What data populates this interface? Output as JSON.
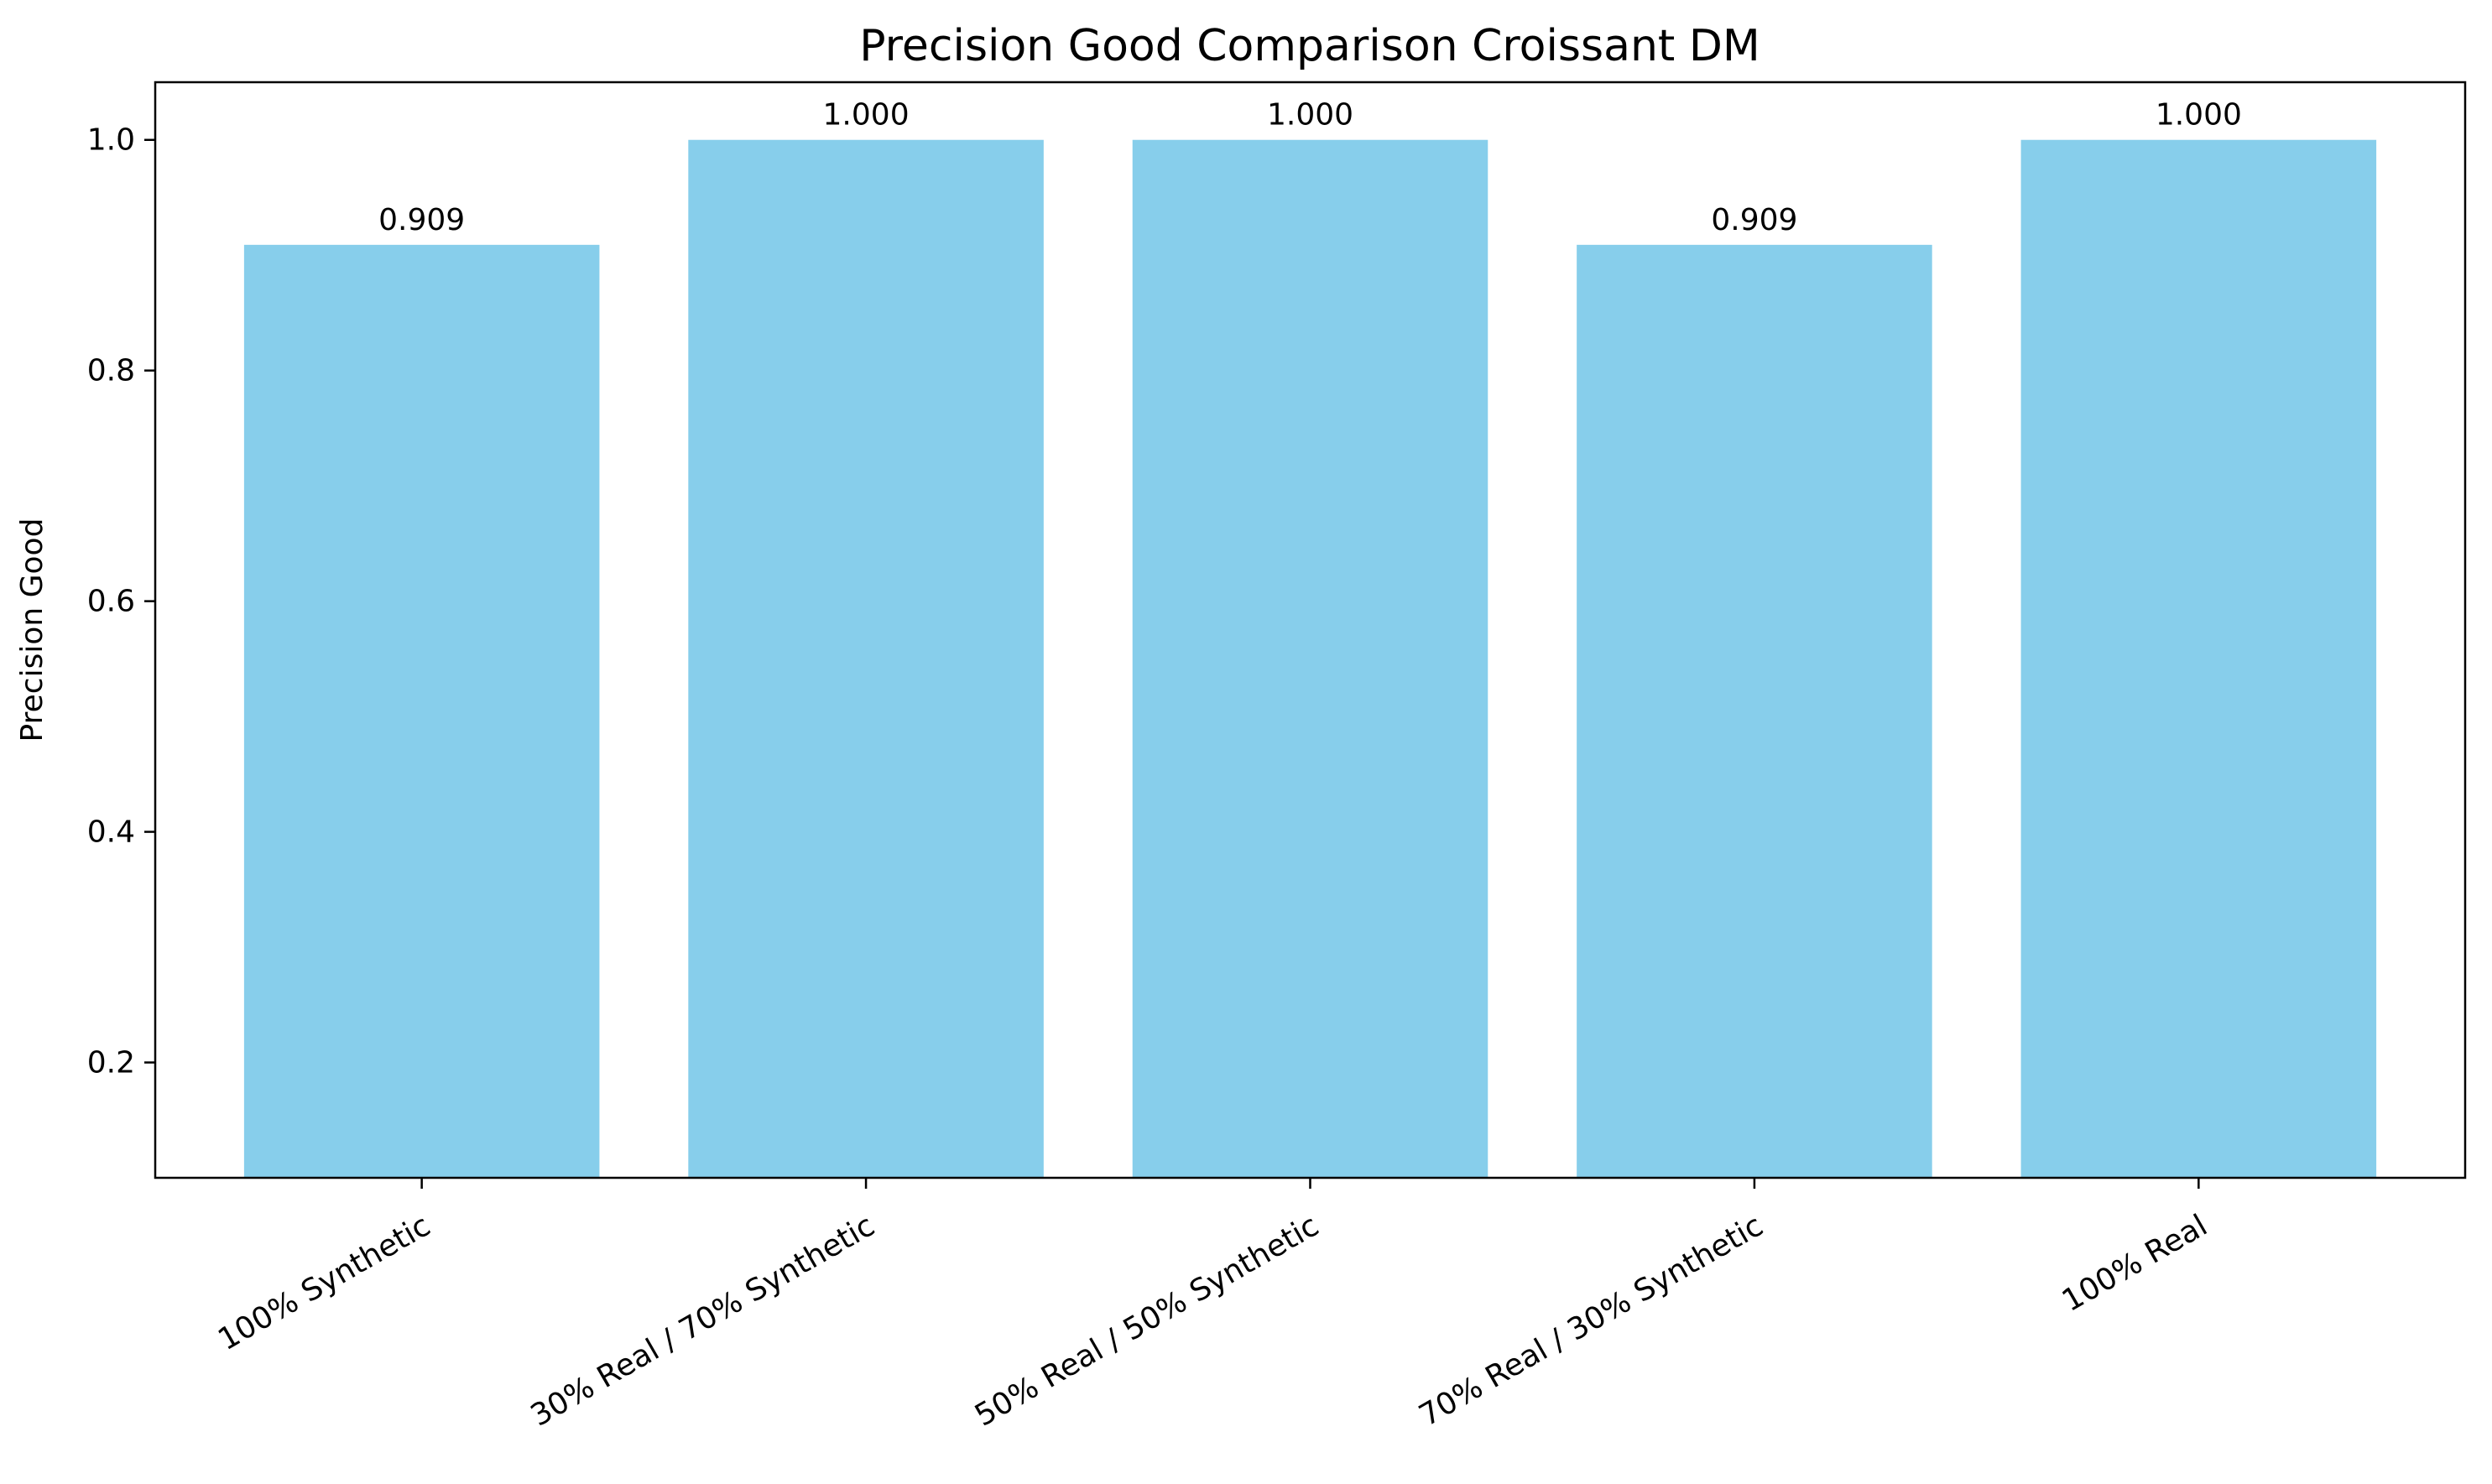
{
  "chart_data": {
    "type": "bar",
    "title": "Precision Good Comparison Croissant DM",
    "xlabel": "",
    "ylabel": "Precision Good",
    "categories": [
      "100% Synthetic",
      "30% Real / 70% Synthetic",
      "50% Real / 50% Synthetic",
      "70% Real / 30% Synthetic",
      "100% Real"
    ],
    "values": [
      0.909,
      1.0,
      1.0,
      0.909,
      1.0
    ],
    "data_labels": [
      "0.909",
      "1.000",
      "1.000",
      "0.909",
      "1.000"
    ],
    "ylim": [
      0.1,
      1.05
    ],
    "yticks": [
      0.2,
      0.4,
      0.6,
      0.8,
      1.0
    ],
    "ytick_labels": [
      "0.2",
      "0.4",
      "0.6",
      "0.8",
      "1.0"
    ],
    "grid": false,
    "bar_color": "#87CEEB",
    "xtick_rotation_deg": 30
  }
}
